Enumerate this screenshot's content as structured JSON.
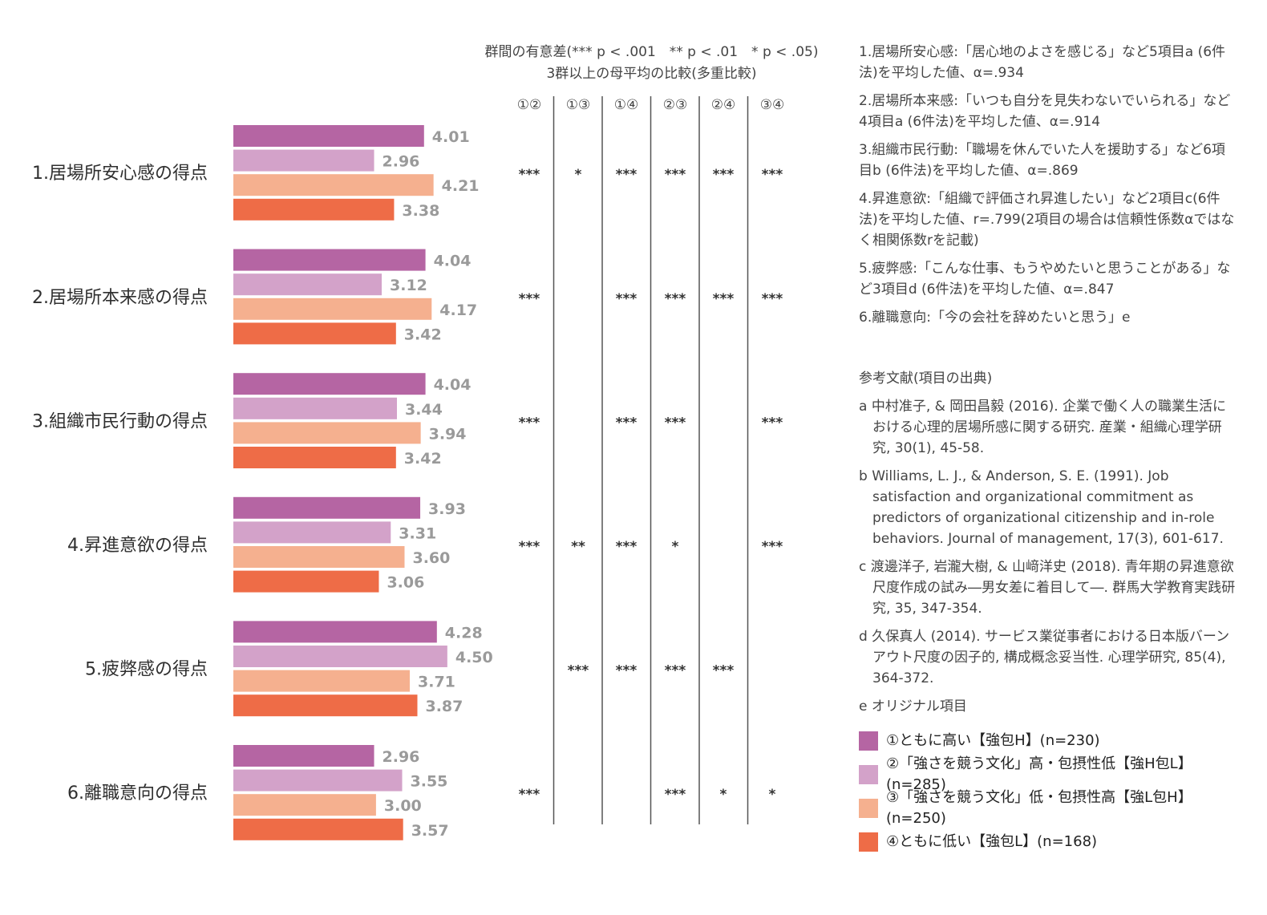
{
  "chart_data": {
    "type": "bar",
    "orientation": "horizontal",
    "categories": [
      "1.居場所安心感の得点",
      "2.居場所本来感の得点",
      "3.組織市民行動の得点",
      "4.昇進意欲の得点",
      "5.疲弊感の得点",
      "6.離職意向の得点"
    ],
    "series": [
      {
        "name": "①ともに高い【強包H】(n=230)",
        "color": "#b565a3",
        "values": [
          4.01,
          4.04,
          4.04,
          3.93,
          4.28,
          2.96
        ]
      },
      {
        "name": "②「強さを競う文化」高・包摂性低【強H包L】(n=285)",
        "color": "#d3a2c9",
        "values": [
          2.96,
          3.12,
          3.44,
          3.31,
          4.5,
          3.55
        ]
      },
      {
        "name": "③「強さを競う文化」低・包摂性高【強L包H】(n=250)",
        "color": "#f5b08f",
        "values": [
          4.21,
          4.17,
          3.94,
          3.6,
          3.71,
          3.0
        ]
      },
      {
        "name": "④ともに低い【強包L】(n=168)",
        "color": "#ee6c47",
        "values": [
          3.38,
          3.42,
          3.42,
          3.06,
          3.87,
          3.57
        ]
      }
    ],
    "value_labels": [
      [
        "4.01",
        "2.96",
        "4.21",
        "3.38"
      ],
      [
        "4.04",
        "3.12",
        "4.17",
        "3.42"
      ],
      [
        "4.04",
        "3.44",
        "3.94",
        "3.42"
      ],
      [
        "3.93",
        "3.31",
        "3.60",
        "3.06"
      ],
      [
        "4.28",
        "4.50",
        "3.71",
        "3.87"
      ],
      [
        "2.96",
        "3.55",
        "3.00",
        "3.57"
      ]
    ],
    "significance": {
      "title_line1": "群間の有意差(*** p < .001　** p < .01　* p < .05)",
      "title_line2": "3群以上の母平均の比較(多重比較)",
      "columns": [
        "①②",
        "①③",
        "①④",
        "②③",
        "②④",
        "③④"
      ],
      "rows": [
        [
          "***",
          "*",
          "***",
          "***",
          "***",
          "***"
        ],
        [
          "***",
          "",
          "***",
          "***",
          "***",
          "***"
        ],
        [
          "***",
          "",
          "***",
          "***",
          "",
          "***"
        ],
        [
          "***",
          "**",
          "***",
          "*",
          "",
          "***"
        ],
        [
          "",
          "***",
          "***",
          "***",
          "***",
          ""
        ],
        [
          "***",
          "",
          "",
          "***",
          "*",
          "*"
        ]
      ]
    }
  },
  "notes": [
    "1.居場所安心感:「居心地のよさを感じる」など5項目a (6件法)を平均した値、α=.934",
    "2.居場所本来感:「いつも自分を見失わないでいられる」など4項目a (6件法)を平均した値、α=.914",
    "3.組織市民行動:「職場を休んでいた人を援助する」など6項目b (6件法)を平均した値、α=.869",
    "4.昇進意欲:「組織で評価され昇進したい」など2項目c(6件法)を平均した値、r=.799(2項目の場合は信頼性係数αではなく相関係数rを記載)",
    "5.疲弊感:「こんな仕事、もうやめたいと思うことがある」など3項目d (6件法)を平均した値、α=.847",
    "6.離職意向:「今の会社を辞めたいと思う」e"
  ],
  "references_title": "参考文献(項目の出典)",
  "references": [
    "a 中村准子, & 岡田昌毅 (2016). 企業で働く人の職業生活における心理的居場所感に関する研究. 産業・組織心理学研究, 30(1), 45-58.",
    "b Williams, L. J., & Anderson, S. E. (1991). Job satisfaction and organizational commitment as predictors of organizational citizenship and in-role behaviors. Journal of management, 17(3), 601-617.",
    "c 渡邊洋子, 岩瀧大樹, & 山﨑洋史 (2018). 青年期の昇進意欲尺度作成の試み―男女差に着目して―. 群馬大学教育実践研究, 35, 347-354.",
    "d 久保真人 (2014). サービス業従事者における日本版バーンアウト尺度の因子的, 構成概念妥当性. 心理学研究, 85(4), 364-372.",
    "e オリジナル項目"
  ]
}
